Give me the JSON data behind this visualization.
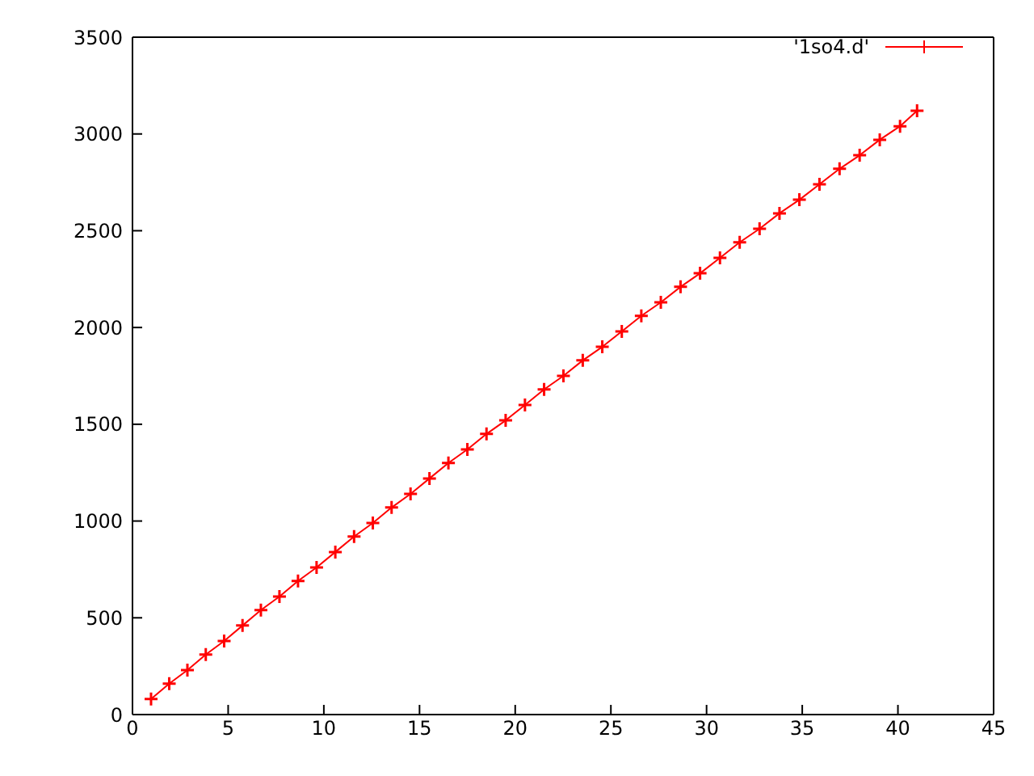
{
  "chart_data": {
    "type": "line",
    "x": [
      0.97,
      1.92,
      2.87,
      3.83,
      4.79,
      5.75,
      6.71,
      7.68,
      8.65,
      9.62,
      10.6,
      11.58,
      12.56,
      13.54,
      14.53,
      15.52,
      16.51,
      17.5,
      18.5,
      19.5,
      20.51,
      21.51,
      22.52,
      23.53,
      24.55,
      25.57,
      26.59,
      27.61,
      28.64,
      29.66,
      30.7,
      31.73,
      32.77,
      33.81,
      34.85,
      35.9,
      36.95,
      38.0,
      39.05,
      40.11,
      41.0
    ],
    "series": [
      {
        "name": "'1so4.d'",
        "color": "#ff0000",
        "values": [
          80,
          160,
          230,
          310,
          380,
          460,
          540,
          610,
          690,
          760,
          840,
          920,
          990,
          1070,
          1140,
          1220,
          1300,
          1370,
          1450,
          1520,
          1600,
          1680,
          1750,
          1830,
          1900,
          1980,
          2060,
          2130,
          2210,
          2280,
          2360,
          2440,
          2510,
          2590,
          2660,
          2740,
          2820,
          2890,
          2970,
          3040,
          3120
        ]
      }
    ],
    "xlim": [
      0,
      45
    ],
    "xticks": [
      0,
      5,
      10,
      15,
      20,
      25,
      30,
      35,
      40,
      45
    ],
    "ylim": [
      0,
      3500
    ],
    "yticks": [
      0,
      500,
      1000,
      1500,
      2000,
      2500,
      3000,
      3500
    ],
    "legend": "top right",
    "marker": "cross",
    "line_style": "solid"
  }
}
